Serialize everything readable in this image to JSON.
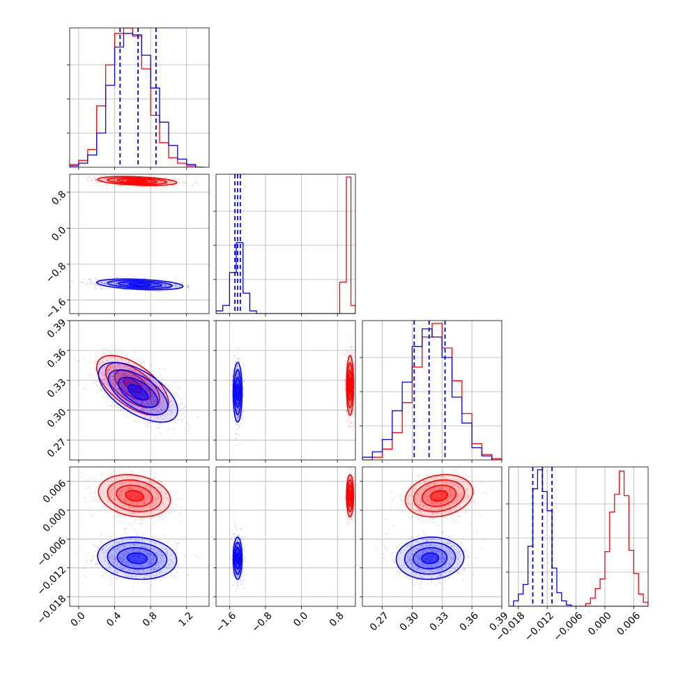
{
  "chart_data": {
    "type": "corner",
    "colors": {
      "series_a": "#ff0000",
      "series_b": "#0000ff"
    },
    "grid": true,
    "legend": "none",
    "series": [
      {
        "color": "#ff0000"
      },
      {
        "color": "#0000ff"
      }
    ],
    "params": [
      {
        "range": [
          -0.1,
          1.45
        ],
        "ticks": [
          0.0,
          0.4,
          0.8,
          1.2
        ],
        "tick_labels": [
          "0.0",
          "0.4",
          "0.8",
          "1.2"
        ]
      },
      {
        "range": [
          -1.9,
          1.2
        ],
        "ticks": [
          -1.6,
          -0.8,
          0.0,
          0.8
        ],
        "tick_labels": [
          "−1.6",
          "−0.8",
          "0.0",
          "0.8"
        ]
      },
      {
        "range": [
          0.25,
          0.39
        ],
        "ticks": [
          0.27,
          0.3,
          0.33,
          0.36,
          0.39
        ],
        "tick_labels": [
          "0.27",
          "0.30",
          "0.33",
          "0.36",
          "0.39"
        ]
      },
      {
        "range": [
          -0.02,
          0.009
        ],
        "ticks": [
          -0.018,
          -0.012,
          -0.006,
          0.0,
          0.006
        ],
        "tick_labels": [
          "−0.018",
          "−0.012",
          "−0.006",
          "0.000",
          "0.006"
        ]
      }
    ],
    "histograms": [
      {
        "param": 0,
        "edges": [
          -0.1,
          0.0,
          0.1,
          0.2,
          0.3,
          0.4,
          0.5,
          0.6,
          0.7,
          0.8,
          0.9,
          1.0,
          1.1,
          1.2,
          1.3,
          1.4
        ],
        "series_a": [
          0.02,
          0.05,
          0.13,
          0.45,
          0.75,
          0.98,
          1.02,
          0.96,
          0.72,
          0.38,
          0.18,
          0.07,
          0.03,
          0.01,
          0.0
        ],
        "series_b": [
          0.01,
          0.03,
          0.09,
          0.25,
          0.6,
          0.88,
          0.98,
          0.97,
          0.82,
          0.58,
          0.33,
          0.16,
          0.06,
          0.02,
          0.0
        ],
        "quantiles_b": [
          0.46,
          0.66,
          0.86
        ]
      },
      {
        "param": 1,
        "edges": [
          -1.9,
          -1.75,
          -1.6,
          -1.45,
          -1.3,
          -1.15,
          -1.0,
          -0.85,
          0.85,
          1.0,
          1.1,
          1.2
        ],
        "series_a": [
          0,
          0,
          0,
          0,
          0,
          0,
          0,
          0,
          0.23,
          1.0,
          0.06
        ],
        "series_b": [
          0.02,
          0.06,
          0.3,
          0.52,
          0.15,
          0.02,
          0,
          0,
          0,
          0,
          0
        ],
        "quantiles_b": [
          -1.48,
          -1.42,
          -1.36
        ]
      },
      {
        "param": 2,
        "edges": [
          0.25,
          0.26,
          0.27,
          0.28,
          0.29,
          0.3,
          0.31,
          0.32,
          0.33,
          0.34,
          0.35,
          0.36,
          0.37,
          0.38,
          0.39
        ],
        "series_a": [
          0.0,
          0.02,
          0.08,
          0.2,
          0.42,
          0.68,
          0.9,
          1.0,
          0.82,
          0.58,
          0.34,
          0.12,
          0.04,
          0.01
        ],
        "series_b": [
          0.02,
          0.06,
          0.15,
          0.36,
          0.57,
          0.83,
          0.96,
          0.9,
          0.75,
          0.46,
          0.27,
          0.09,
          0.03,
          0.0
        ],
        "quantiles_b": [
          0.302,
          0.317,
          0.333
        ]
      },
      {
        "param": 3,
        "edges": [
          -0.02,
          -0.019,
          -0.018,
          -0.017,
          -0.016,
          -0.015,
          -0.014,
          -0.013,
          -0.012,
          -0.011,
          -0.01,
          -0.009,
          -0.008,
          -0.007,
          -0.006,
          -0.005,
          -0.004,
          -0.003,
          -0.002,
          -0.001,
          0.0,
          0.001,
          0.002,
          0.003,
          0.004,
          0.005,
          0.006,
          0.007,
          0.008,
          0.009
        ],
        "series_a": [
          0,
          0,
          0,
          0,
          0,
          0,
          0,
          0,
          0,
          0,
          0,
          0,
          0,
          0,
          0,
          0,
          0.02,
          0.06,
          0.13,
          0.2,
          0.4,
          0.69,
          0.82,
          0.99,
          0.81,
          0.41,
          0.24,
          0.09,
          0.03
        ],
        "series_b": [
          0,
          0.04,
          0.09,
          0.16,
          0.44,
          0.86,
          1.0,
          0.84,
          0.7,
          0.28,
          0.1,
          0.04,
          0.01,
          0,
          0,
          0,
          0,
          0,
          0,
          0,
          0,
          0,
          0,
          0,
          0,
          0,
          0,
          0,
          0
        ],
        "quantiles_b": [
          -0.015,
          -0.013,
          -0.011
        ]
      }
    ],
    "pairs": [
      {
        "x_param": 0,
        "y_param": 1,
        "series_a": {
          "mean": [
            0.65,
            1.05
          ],
          "sd": [
            0.22,
            0.05
          ],
          "rho": -0.35
        },
        "series_b": {
          "mean": [
            0.68,
            -1.25
          ],
          "sd": [
            0.24,
            0.06
          ],
          "rho": -0.35
        }
      },
      {
        "x_param": 0,
        "y_param": 2,
        "series_a": {
          "mean": [
            0.6,
            0.325
          ],
          "sd": [
            0.2,
            0.015
          ],
          "rho": -0.6
        },
        "series_b": {
          "mean": [
            0.66,
            0.318
          ],
          "sd": [
            0.22,
            0.015
          ],
          "rho": -0.6
        }
      },
      {
        "x_param": 0,
        "y_param": 3,
        "series_a": {
          "mean": [
            0.62,
            0.003
          ],
          "sd": [
            0.2,
            0.0022
          ],
          "rho": -0.2
        },
        "series_b": {
          "mean": [
            0.65,
            -0.01
          ],
          "sd": [
            0.22,
            0.0022
          ],
          "rho": -0.1
        }
      },
      {
        "x_param": 1,
        "y_param": 2,
        "series_a": {
          "mean": [
            1.08,
            0.325
          ],
          "sd": [
            0.04,
            0.015
          ],
          "rho": 0.0
        },
        "series_b": {
          "mean": [
            -1.42,
            0.318
          ],
          "sd": [
            0.05,
            0.015
          ],
          "rho": 0.0
        }
      },
      {
        "x_param": 1,
        "y_param": 3,
        "series_a": {
          "mean": [
            1.08,
            0.003
          ],
          "sd": [
            0.04,
            0.0022
          ],
          "rho": 0.0
        },
        "series_b": {
          "mean": [
            -1.42,
            -0.01
          ],
          "sd": [
            0.05,
            0.0022
          ],
          "rho": 0.0
        }
      },
      {
        "x_param": 2,
        "y_param": 3,
        "series_a": {
          "mean": [
            0.327,
            0.003
          ],
          "sd": [
            0.017,
            0.0022
          ],
          "rho": 0.2
        },
        "series_b": {
          "mean": [
            0.318,
            -0.01
          ],
          "sd": [
            0.017,
            0.0022
          ],
          "rho": 0.05
        }
      }
    ]
  }
}
